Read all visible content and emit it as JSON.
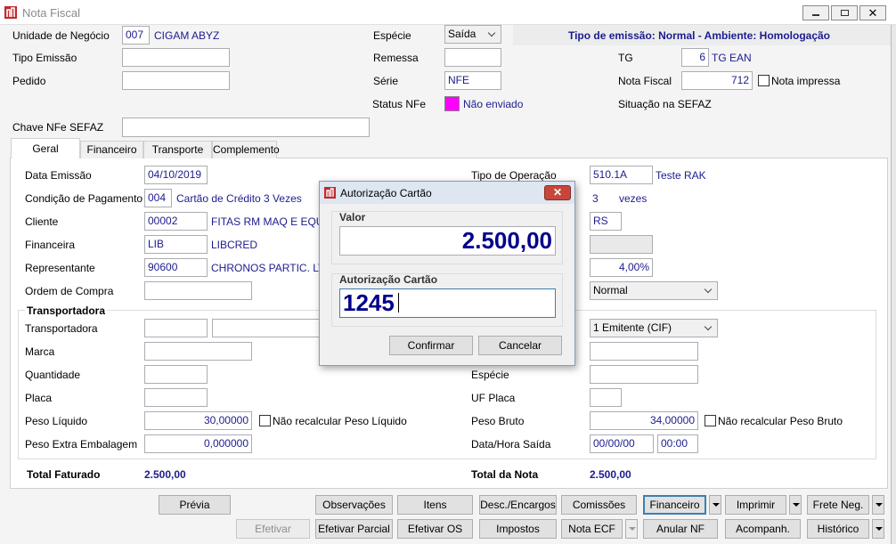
{
  "window": {
    "title": "Nota Fiscal"
  },
  "header": {
    "unidade_label": "Unidade de Negócio",
    "unidade_code": "007",
    "unidade_name": "CIGAM ABYZ",
    "tipo_emissao_label": "Tipo Emissão",
    "pedido_label": "Pedido",
    "especie_label": "Espécie",
    "especie_value": "Saída",
    "remessa_label": "Remessa",
    "serie_label": "Série",
    "serie_value": "NFE",
    "status_label": "Status NFe",
    "status_value": "Não enviado",
    "banner": "Tipo de emissão: Normal - Ambiente: Homologação",
    "tg_label": "TG",
    "tg_code": "6",
    "tg_name": "TG EAN",
    "nf_label": "Nota Fiscal",
    "nf_value": "712",
    "nf_printed": "Nota impressa",
    "situacao_label": "Situação na SEFAZ",
    "chave_label": "Chave NFe SEFAZ"
  },
  "tabs": [
    "Geral",
    "Financeiro",
    "Transporte",
    "Complemento"
  ],
  "geral": {
    "data_emissao_label": "Data Emissão",
    "data_emissao": "04/10/2019",
    "condicao_label": "Condição de Pagamento",
    "condicao_code": "004",
    "condicao_name": "Cartão de Crédito 3 Vezes",
    "cliente_label": "Cliente",
    "cliente_code": "00002",
    "cliente_name": "FITAS RM MAQ E EQUIP",
    "financeira_label": "Financeira",
    "financeira_code": "LIB",
    "financeira_name": "LIBCRED",
    "representante_label": "Representante",
    "representante_code": "90600",
    "representante_name": "CHRONOS PARTIC. LTDA",
    "ordem_label": "Ordem de Compra",
    "tipo_operacao_label": "Tipo de Operação",
    "tipo_operacao_code": "510.1A",
    "tipo_operacao_name": "Teste RAK",
    "parcelas": "3",
    "parcelas_unit": "vezes",
    "uf": "RS",
    "comissao": "4,00%",
    "tipo": "Normal"
  },
  "transporte": {
    "group": "Transportadora",
    "transportadora_label": "Transportadora",
    "frete": "1 Emitente (CIF)",
    "marca_label": "Marca",
    "quantidade_label": "Quantidade",
    "especie_label": "Espécie",
    "placa_label": "Placa",
    "uf_placa_label": "UF Placa",
    "peso_liquido_label": "Peso Líquido",
    "peso_liquido": "30,00000",
    "peso_liquido_check": "Não recalcular Peso Líquido",
    "peso_bruto_label": "Peso Bruto",
    "peso_bruto": "34,00000",
    "peso_bruto_check": "Não recalcular Peso Bruto",
    "peso_extra_label": "Peso Extra Embalagem",
    "peso_extra": "0,000000",
    "saida_label": "Data/Hora Saída",
    "saida_data": "00/00/00",
    "saida_hora": "00:00"
  },
  "totais": {
    "faturado_label": "Total Faturado",
    "faturado": "2.500,00",
    "nota_label": "Total da Nota",
    "nota": "2.500,00"
  },
  "buttons": {
    "row1": [
      "Prévia",
      "Observações",
      "Itens",
      "Desc./Encargos",
      "Comissões",
      "Financeiro",
      "Imprimir",
      "Frete Neg."
    ],
    "row2": [
      "Efetivar",
      "Efetivar Parcial",
      "Efetivar OS",
      "Impostos",
      "Nota ECF",
      "Anular NF",
      "Acompanh.",
      "Histórico"
    ]
  },
  "dialog": {
    "title": "Autorização Cartão",
    "valor_label": "Valor",
    "valor": "2.500,00",
    "autorizacao_label": "Autorização Cartão",
    "autorizacao": "1245",
    "confirm": "Confirmar",
    "cancel": "Cancelar"
  }
}
